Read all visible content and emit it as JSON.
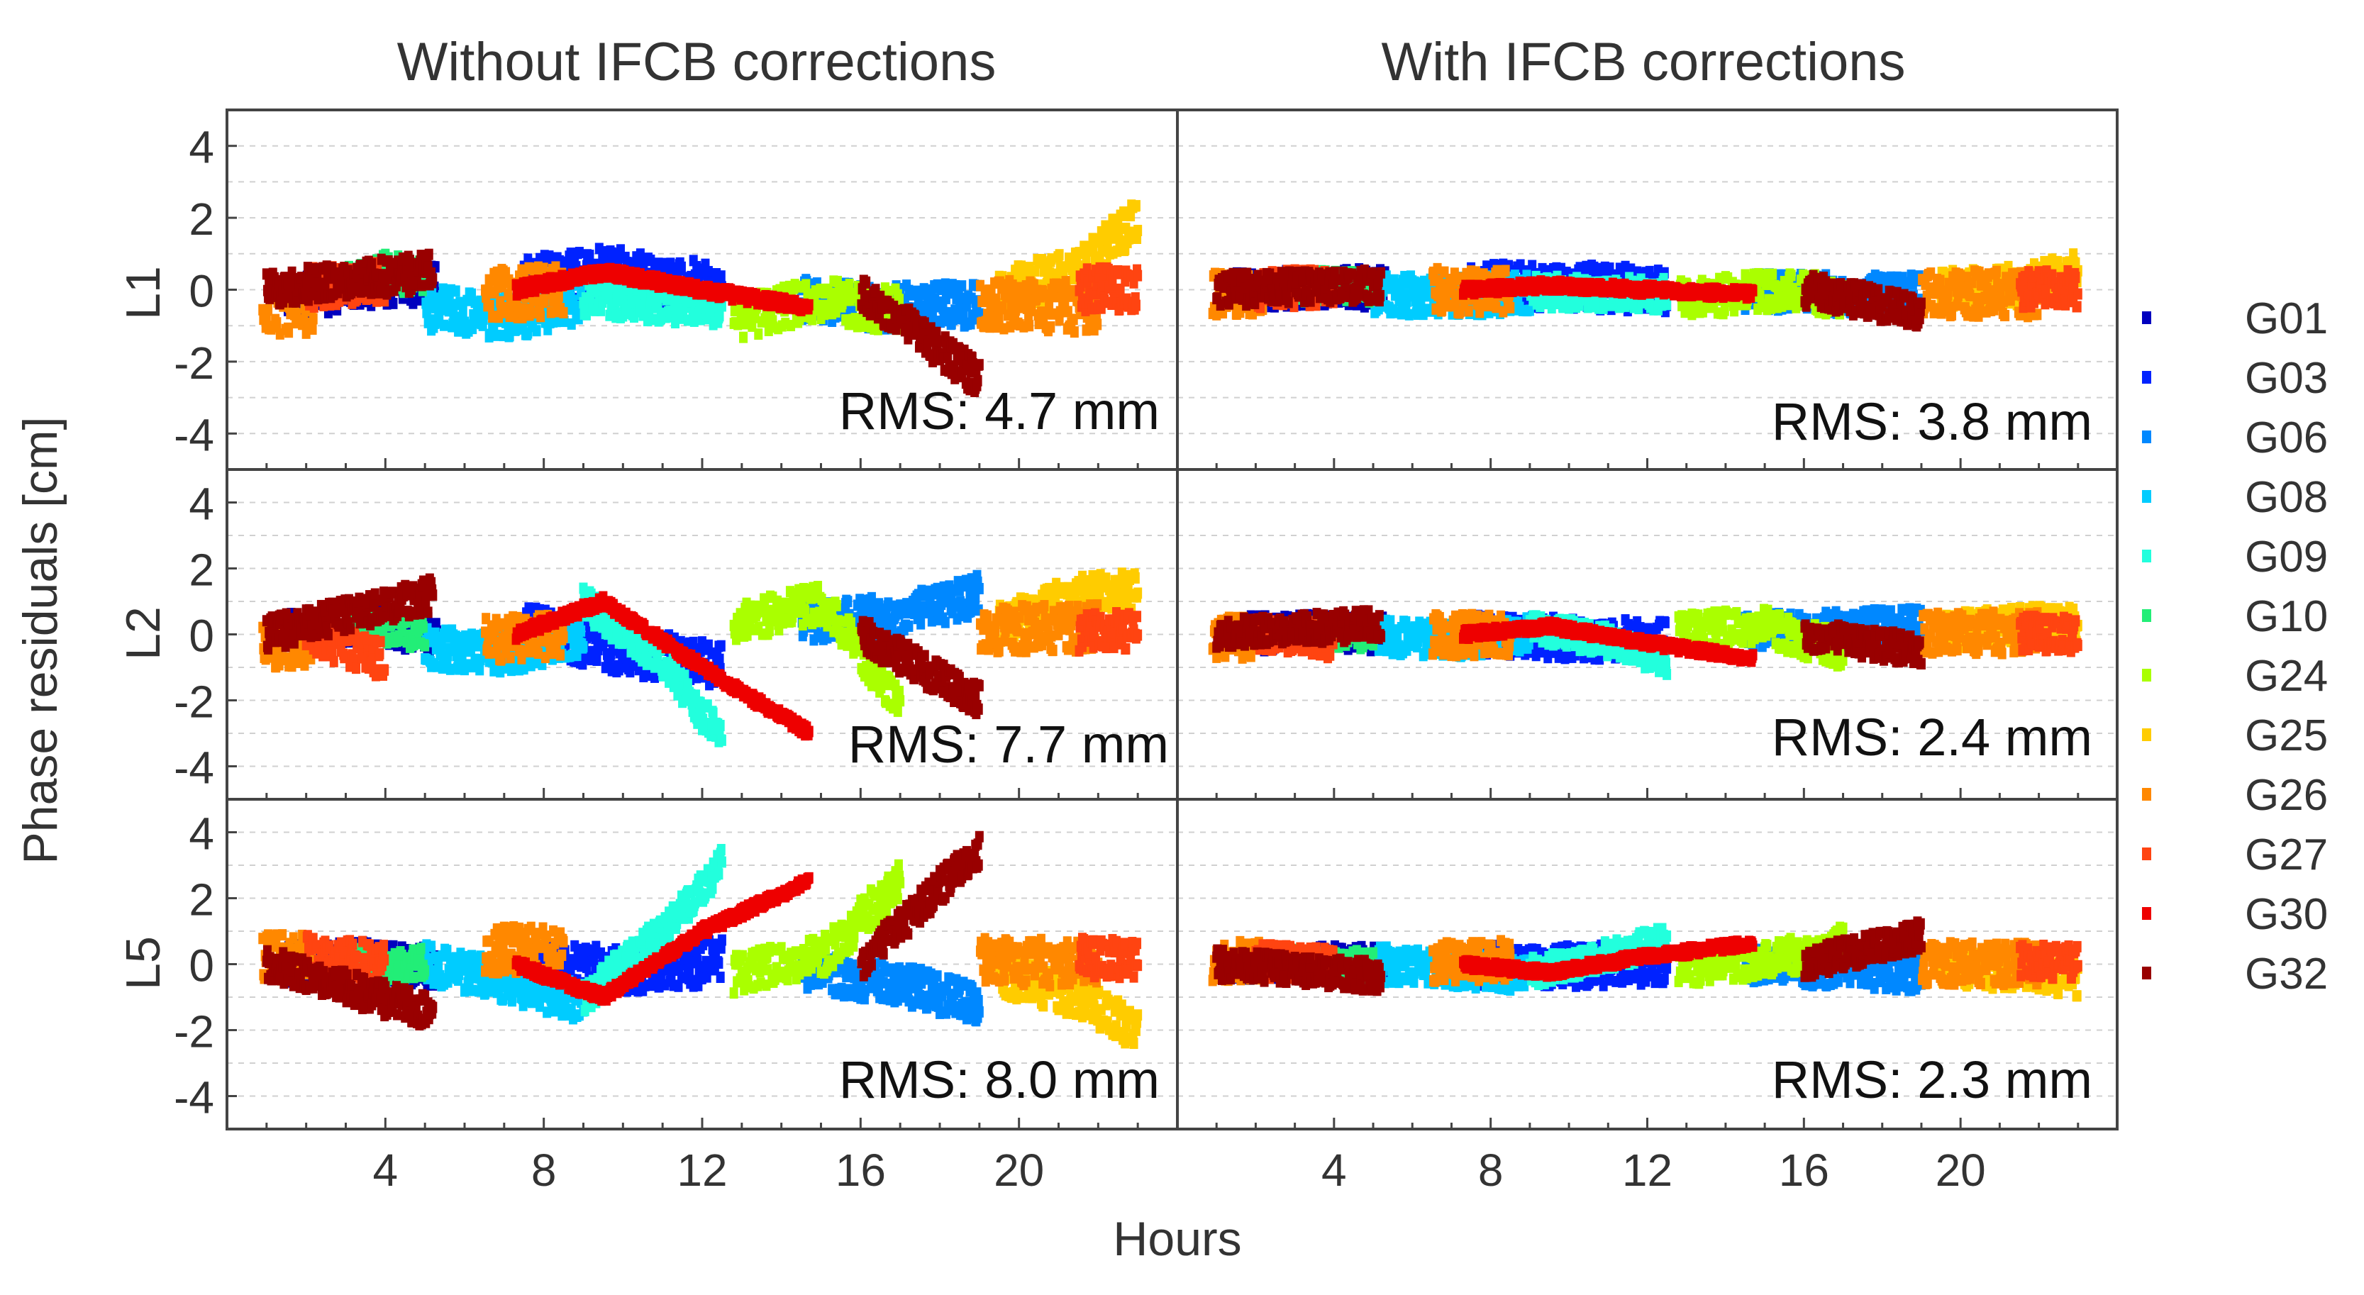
{
  "chart_data": {
    "type": "scatter",
    "title_left": "Without IFCB corrections",
    "title_right": "With IFCB corrections",
    "xlabel": "Hours",
    "ylabel": "Phase residuals [cm]",
    "xlim": [
      0,
      24
    ],
    "ylim": [
      -5,
      5
    ],
    "xticks": [
      4,
      8,
      12,
      16,
      20
    ],
    "xtick_labels": [
      "4",
      "8",
      "12",
      "16",
      "20"
    ],
    "yticks": [
      -4,
      -2,
      0,
      2,
      4
    ],
    "ytick_labels": [
      "-4",
      "-2",
      "0",
      "2",
      "4"
    ],
    "rows": [
      {
        "label": "L1",
        "rms_without": "RMS: 4.7 mm",
        "rms_with": "RMS: 3.8 mm"
      },
      {
        "label": "L2",
        "rms_without": "RMS: 7.7 mm",
        "rms_with": "RMS: 2.4 mm"
      },
      {
        "label": "L5",
        "rms_without": "RMS: 8.0 mm",
        "rms_with": "RMS: 2.3 mm"
      }
    ],
    "series": [
      {
        "name": "G01",
        "color": "#0000bf",
        "start": 1.5,
        "end": 5.3,
        "amp": 0.6,
        "shape": {
          "L1": [
            [
              1.5,
              -0.2
            ],
            [
              3.5,
              0.1
            ],
            [
              5.3,
              0.2
            ]
          ],
          "L2": [
            [
              1.5,
              0.1
            ],
            [
              3.5,
              0.3
            ],
            [
              5.3,
              0.0
            ]
          ],
          "L5": [
            [
              1.5,
              0.0
            ],
            [
              3.5,
              0.1
            ],
            [
              5.3,
              -0.1
            ]
          ]
        }
      },
      {
        "name": "G03",
        "color": "#0022ff",
        "start": 7.5,
        "end": 12.5,
        "amp": 0.7,
        "shape": {
          "L1": [
            [
              7.5,
              0.3
            ],
            [
              9.5,
              0.5
            ],
            [
              12.5,
              0.0
            ]
          ],
          "L2": [
            [
              7.5,
              0.2
            ],
            [
              10.0,
              -0.5
            ],
            [
              12.5,
              -0.9
            ]
          ],
          "L5": [
            [
              7.5,
              0.0
            ],
            [
              10.0,
              -0.2
            ],
            [
              12.5,
              0.1
            ]
          ]
        }
      },
      {
        "name": "G06",
        "color": "#0088ff",
        "start": 14.5,
        "end": 19.0,
        "amp": 0.6,
        "shape": {
          "L1": [
            [
              14.5,
              -0.3
            ],
            [
              16.5,
              -0.5
            ],
            [
              19.0,
              -0.4
            ]
          ],
          "L2": [
            [
              14.5,
              0.3
            ],
            [
              17.0,
              0.6
            ],
            [
              19.0,
              1.2
            ]
          ],
          "L5": [
            [
              14.5,
              -0.2
            ],
            [
              17.0,
              -0.6
            ],
            [
              19.0,
              -1.2
            ]
          ]
        }
      },
      {
        "name": "G08",
        "color": "#00ccff",
        "start": 5.0,
        "end": 9.0,
        "amp": 0.6,
        "shape": {
          "L1": [
            [
              5.0,
              -0.5
            ],
            [
              7.0,
              -0.8
            ],
            [
              9.0,
              -0.3
            ]
          ],
          "L2": [
            [
              5.0,
              -0.4
            ],
            [
              7.0,
              -0.6
            ],
            [
              9.0,
              0.0
            ]
          ],
          "L5": [
            [
              5.0,
              0.0
            ],
            [
              7.0,
              -0.5
            ],
            [
              9.0,
              -1.2
            ]
          ]
        }
      },
      {
        "name": "G09",
        "color": "#22ffdd",
        "start": 9.0,
        "end": 12.5,
        "amp": 0.5,
        "shape": {
          "L1": [
            [
              9.0,
              -0.2
            ],
            [
              11.0,
              -0.4
            ],
            [
              12.5,
              -0.5
            ]
          ],
          "L2": [
            [
              9.0,
              1.0
            ],
            [
              11.0,
              -0.8
            ],
            [
              12.5,
              -3.2
            ]
          ],
          "L5": [
            [
              9.0,
              -1.0
            ],
            [
              11.0,
              1.0
            ],
            [
              12.5,
              3.0
            ]
          ]
        }
      },
      {
        "name": "G10",
        "color": "#22ee77",
        "start": 3.0,
        "end": 5.0,
        "amp": 0.5,
        "shape": {
          "L1": [
            [
              3.0,
              0.2
            ],
            [
              4.0,
              0.5
            ],
            [
              5.0,
              0.3
            ]
          ],
          "L2": [
            [
              3.0,
              0.1
            ],
            [
              4.0,
              0.2
            ],
            [
              5.0,
              0.0
            ]
          ],
          "L5": [
            [
              3.0,
              0.1
            ],
            [
              4.0,
              -0.2
            ],
            [
              5.0,
              0.0
            ]
          ]
        }
      },
      {
        "name": "G24",
        "color": "#aaff00",
        "start": 12.8,
        "end": 17.0,
        "amp": 0.6,
        "shape": {
          "L1": [
            [
              12.8,
              -0.8
            ],
            [
              15.0,
              -0.3
            ],
            [
              17.0,
              -0.6
            ]
          ],
          "L2": [
            [
              12.8,
              0.4
            ],
            [
              15.0,
              0.9
            ],
            [
              17.0,
              -2.0
            ]
          ],
          "L5": [
            [
              12.8,
              -0.3
            ],
            [
              15.0,
              0.2
            ],
            [
              17.0,
              2.5
            ]
          ]
        }
      },
      {
        "name": "G25",
        "color": "#ffcc00",
        "start": 19.5,
        "end": 23.0,
        "amp": 0.6,
        "shape": {
          "L1": [
            [
              19.5,
              0.0
            ],
            [
              21.5,
              0.5
            ],
            [
              23.0,
              2.0
            ]
          ],
          "L2": [
            [
              19.5,
              0.3
            ],
            [
              21.5,
              1.2
            ],
            [
              23.0,
              1.3
            ]
          ],
          "L5": [
            [
              19.5,
              -0.3
            ],
            [
              21.5,
              -1.0
            ],
            [
              23.0,
              -2.0
            ]
          ]
        }
      },
      {
        "name": "G26",
        "color": "#ff8800",
        "start": 0.9,
        "end": 22.0,
        "amp": 0.7,
        "segments": [
          [
            0.9,
            2.2
          ],
          [
            6.5,
            8.5
          ],
          [
            19.0,
            22.0
          ]
        ],
        "shape": {
          "L1": [
            [
              0.9,
              -0.6
            ],
            [
              8.5,
              0.0
            ],
            [
              22.0,
              -0.5
            ]
          ],
          "L2": [
            [
              0.9,
              -0.4
            ],
            [
              8.5,
              0.0
            ],
            [
              22.0,
              0.2
            ]
          ],
          "L5": [
            [
              0.9,
              0.2
            ],
            [
              8.5,
              0.5
            ],
            [
              22.0,
              0.0
            ]
          ]
        }
      },
      {
        "name": "G27",
        "color": "#ff4411",
        "start": 2.0,
        "end": 23.0,
        "amp": 0.6,
        "segments": [
          [
            2.0,
            4.0
          ],
          [
            21.5,
            23.0
          ]
        ],
        "shape": {
          "L1": [
            [
              2.0,
              0.0
            ],
            [
              4.0,
              0.2
            ],
            [
              23.0,
              0.0
            ]
          ],
          "L2": [
            [
              2.0,
              0.0
            ],
            [
              4.0,
              -0.8
            ],
            [
              23.0,
              0.1
            ]
          ],
          "L5": [
            [
              2.0,
              0.3
            ],
            [
              4.0,
              0.0
            ],
            [
              23.0,
              0.2
            ]
          ]
        }
      },
      {
        "name": "G30",
        "color": "#ee0000",
        "start": 7.3,
        "end": 14.7,
        "amp": 0.15,
        "shape": {
          "L1": [
            [
              7.3,
              0.0
            ],
            [
              9.5,
              0.5
            ],
            [
              12.0,
              0.0
            ],
            [
              14.7,
              -0.5
            ]
          ],
          "L2": [
            [
              7.3,
              0.0
            ],
            [
              9.5,
              1.0
            ],
            [
              12.0,
              -1.0
            ],
            [
              14.7,
              -3.0
            ]
          ],
          "L5": [
            [
              7.3,
              0.0
            ],
            [
              9.5,
              -1.0
            ],
            [
              12.0,
              1.0
            ],
            [
              14.7,
              2.5
            ]
          ]
        }
      },
      {
        "name": "G32",
        "color": "#990000",
        "start": 1.0,
        "end": 19.0,
        "amp": 0.5,
        "segments": [
          [
            1.0,
            5.2
          ],
          [
            16.0,
            19.0
          ]
        ],
        "shape": {
          "L1": [
            [
              1.0,
              0.0
            ],
            [
              5.2,
              0.5
            ],
            [
              16.0,
              0.0
            ],
            [
              19.0,
              -2.5
            ]
          ],
          "L2": [
            [
              1.0,
              0.0
            ],
            [
              5.2,
              1.2
            ],
            [
              16.0,
              0.0
            ],
            [
              19.0,
              -2.0
            ]
          ],
          "L5": [
            [
              1.0,
              0.0
            ],
            [
              5.2,
              -1.5
            ],
            [
              16.0,
              0.0
            ],
            [
              19.0,
              3.5
            ]
          ]
        }
      }
    ]
  }
}
